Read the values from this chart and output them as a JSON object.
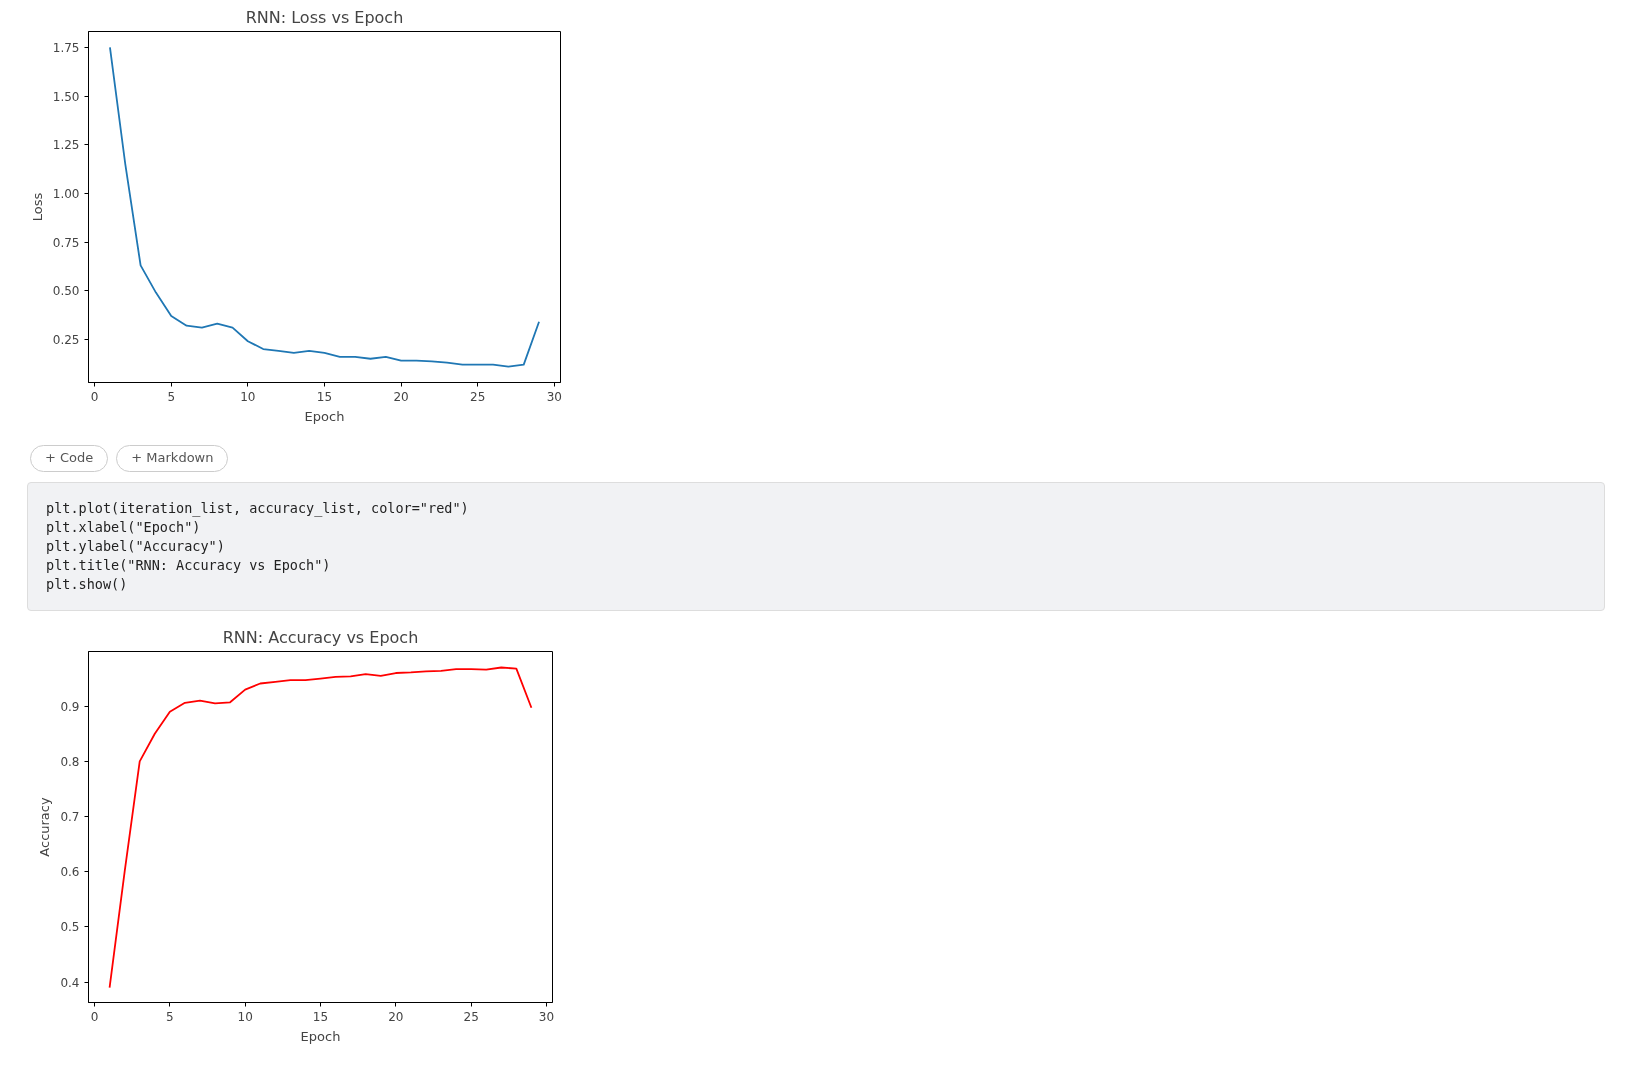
{
  "chart_data": [
    {
      "type": "line",
      "title": "RNN: Loss vs Epoch",
      "xlabel": "Epoch",
      "ylabel": "Loss",
      "x": [
        1,
        2,
        3,
        4,
        5,
        6,
        7,
        8,
        9,
        10,
        11,
        12,
        13,
        14,
        15,
        16,
        17,
        18,
        19,
        20,
        21,
        22,
        23,
        24,
        25,
        26,
        27,
        28,
        29
      ],
      "series": [
        {
          "color": "#1f77b4",
          "values": [
            1.75,
            1.15,
            0.63,
            0.49,
            0.37,
            0.32,
            0.31,
            0.33,
            0.31,
            0.24,
            0.2,
            0.19,
            0.18,
            0.19,
            0.18,
            0.16,
            0.16,
            0.15,
            0.16,
            0.14,
            0.14,
            0.137,
            0.13,
            0.12,
            0.12,
            0.12,
            0.11,
            0.12,
            0.34
          ]
        }
      ],
      "xlim": [
        -0.4,
        30.4
      ],
      "ylim": [
        0.028,
        1.832
      ],
      "xticks": [
        0,
        5,
        10,
        15,
        20,
        25,
        30
      ],
      "yticks": [
        0.25,
        {
          "value": 0.5,
          "label": "0.50"
        },
        0.75,
        {
          "value": 1,
          "label": "1.00"
        },
        1.25,
        {
          "value": 1.5,
          "label": "1.50"
        },
        1.75
      ],
      "grid": false
    },
    {
      "type": "other",
      "annotations": [
        "+ Code",
        "+ Markdown",
        "plt.plot(iteration_list, accuracy_list, color=\"red\")",
        "plt.xlabel(\"Epoch\")",
        "plt.ylabel(\"Accuracy\")",
        "plt.title(\"RNN: Accuracy vs Epoch\")",
        "plt.show()"
      ]
    },
    {
      "type": "line",
      "title": "RNN: Accuracy vs Epoch",
      "xlabel": "Epoch",
      "ylabel": "Accuracy",
      "x": [
        1,
        2,
        3,
        4,
        5,
        6,
        7,
        8,
        9,
        10,
        11,
        12,
        13,
        14,
        15,
        16,
        17,
        18,
        19,
        20,
        21,
        22,
        23,
        24,
        25,
        26,
        27,
        28,
        29
      ],
      "series": [
        {
          "color": "#ff0000",
          "values": [
            0.39,
            0.6,
            0.8,
            0.85,
            0.89,
            0.906,
            0.91,
            0.905,
            0.907,
            0.93,
            0.941,
            0.944,
            0.947,
            0.947,
            0.95,
            0.953,
            0.954,
            0.958,
            0.955,
            0.96,
            0.961,
            0.963,
            0.964,
            0.967,
            0.967,
            0.966,
            0.97,
            0.968,
            0.897
          ]
        }
      ],
      "xlim": [
        -0.4,
        30.4
      ],
      "ylim": [
        0.363,
        0.999
      ],
      "xticks": [
        0,
        5,
        10,
        15,
        20,
        25,
        30
      ],
      "yticks": [
        0.4,
        0.5,
        0.6,
        0.7,
        0.8,
        0.9
      ],
      "grid": false
    }
  ]
}
